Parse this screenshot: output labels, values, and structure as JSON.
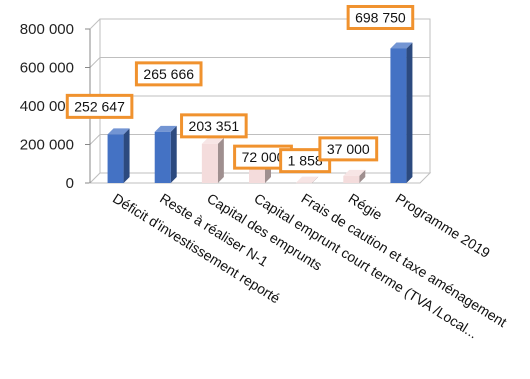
{
  "chart_data": {
    "type": "bar",
    "title": "",
    "xlabel": "",
    "ylabel": "",
    "ylim": [
      0,
      800000
    ],
    "yticks": [
      0,
      200000,
      400000,
      600000,
      800000
    ],
    "ytick_labels": [
      "0",
      "200 000",
      "400 000",
      "600 000",
      "800 000"
    ],
    "grid": true,
    "three_d": true,
    "categories": [
      "Déficit d'investissement reporté",
      "Reste à réaliser N-1",
      "Capital des emprunts",
      "Capital emprunt court terme (TVA /Local...",
      "Frais de caution et taxe aménagement",
      "Régie",
      "Programme 2019"
    ],
    "values": [
      252647,
      265666,
      203351,
      72000,
      1858,
      37000,
      698750
    ],
    "data_labels": [
      "252 647",
      "265 666",
      "203 351",
      "72 000",
      "1 858",
      "37 000",
      "698 750"
    ],
    "bar_colors": [
      "#4472c4",
      "#4472c4",
      "#f4dcdc",
      "#f4dcdc",
      "#f4dcdc",
      "#f4dcdc",
      "#4472c4"
    ],
    "label_border_color": "#f0922e"
  }
}
